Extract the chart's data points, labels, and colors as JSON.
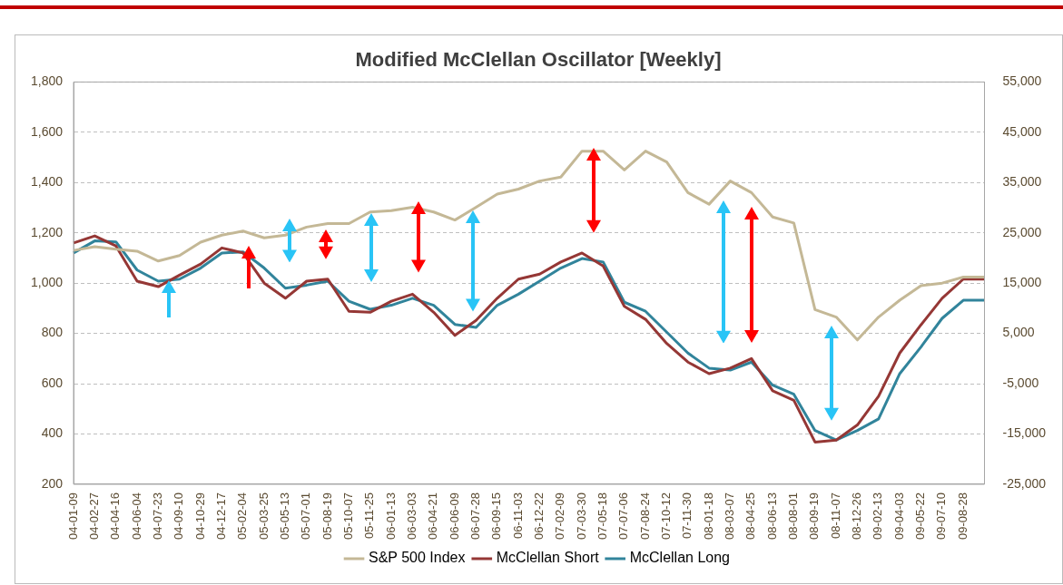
{
  "chart_data": {
    "type": "line",
    "title": "Modified McClellan Oscillator [Weekly]",
    "categories": [
      "04-01-09",
      "04-02-27",
      "04-04-16",
      "04-06-04",
      "04-07-23",
      "04-09-10",
      "04-10-29",
      "04-12-17",
      "05-02-04",
      "05-03-25",
      "05-05-13",
      "05-07-01",
      "05-08-19",
      "05-10-07",
      "05-11-25",
      "06-01-13",
      "06-03-03",
      "06-04-21",
      "06-06-09",
      "06-07-28",
      "06-09-15",
      "06-11-03",
      "06-12-22",
      "07-02-09",
      "07-03-30",
      "07-05-18",
      "07-07-06",
      "07-08-24",
      "07-10-12",
      "07-11-30",
      "08-01-18",
      "08-03-07",
      "08-04-25",
      "08-06-13",
      "08-08-01",
      "08-09-19",
      "08-11-07",
      "08-12-26",
      "09-02-13",
      "09-04-03",
      "09-05-22",
      "09-07-10",
      "09-08-28",
      null
    ],
    "series": [
      {
        "name": "S&P 500 Index",
        "color": "#c4b896",
        "values": [
          1130,
          1145,
          1135,
          1127,
          1088,
          1110,
          1163,
          1191,
          1207,
          1180,
          1191,
          1223,
          1237,
          1237,
          1283,
          1288,
          1302,
          1283,
          1251,
          1302,
          1354,
          1374,
          1406,
          1422,
          1525,
          1525,
          1450,
          1525,
          1482,
          1360,
          1314,
          1406,
          1360,
          1263,
          1239,
          895,
          865,
          774,
          865,
          932,
          990,
          1000,
          1024,
          1024
        ]
      },
      {
        "name": "McClellan Short",
        "color": "#953735",
        "axis": "y2",
        "values": [
          23000,
          24400,
          22400,
          15400,
          14300,
          16600,
          18800,
          22000,
          21000,
          15000,
          12000,
          15400,
          15800,
          9400,
          9200,
          11400,
          12800,
          9200,
          4600,
          7600,
          12000,
          15800,
          16800,
          19200,
          21000,
          18400,
          10400,
          7800,
          3000,
          -700,
          -3000,
          -1900,
          0,
          -6400,
          -8300,
          -16600,
          -16200,
          -13200,
          -7500,
          1100,
          6700,
          12000,
          15800,
          15800
        ]
      },
      {
        "name": "McClellan Long",
        "color": "#31849b",
        "axis": "y2",
        "values": [
          21000,
          23400,
          23200,
          17600,
          15400,
          15800,
          18000,
          21000,
          21200,
          18000,
          14000,
          14600,
          15400,
          11400,
          9800,
          10600,
          12000,
          10600,
          6800,
          6200,
          10600,
          12800,
          15400,
          18000,
          19900,
          19200,
          11200,
          9400,
          5250,
          1100,
          -1900,
          -2300,
          -700,
          -5300,
          -7100,
          -14300,
          -16200,
          -14300,
          -12000,
          -3000,
          2300,
          8000,
          11600,
          11600
        ]
      }
    ],
    "ylim": [
      200,
      1800
    ],
    "yticks": [
      {
        "value": 200,
        "label": "200"
      },
      {
        "value": 400,
        "label": "400"
      },
      {
        "value": 600,
        "label": "600"
      },
      {
        "value": 800,
        "label": "800"
      },
      {
        "value": 1000,
        "label": "1,000"
      },
      {
        "value": 1200,
        "label": "1,200"
      },
      {
        "value": 1400,
        "label": "1,400"
      },
      {
        "value": 1600,
        "label": "1,600"
      },
      {
        "value": 1800,
        "label": "1,800"
      }
    ],
    "y2lim": [
      -25000,
      55000
    ],
    "y2ticks": [
      {
        "value": -25000,
        "label": "-25,000"
      },
      {
        "value": -15000,
        "label": "-15,000"
      },
      {
        "value": -5000,
        "label": "-5,000"
      },
      {
        "value": 5000,
        "label": "5,000"
      },
      {
        "value": 15000,
        "label": "15,000"
      },
      {
        "value": 25000,
        "label": "25,000"
      },
      {
        "value": 35000,
        "label": "35,000"
      },
      {
        "value": 45000,
        "label": "45,000"
      },
      {
        "value": 55000,
        "label": "55,000"
      }
    ],
    "grid": "y",
    "legend": "bottom",
    "marker": "none",
    "line_style": "solid"
  }
}
